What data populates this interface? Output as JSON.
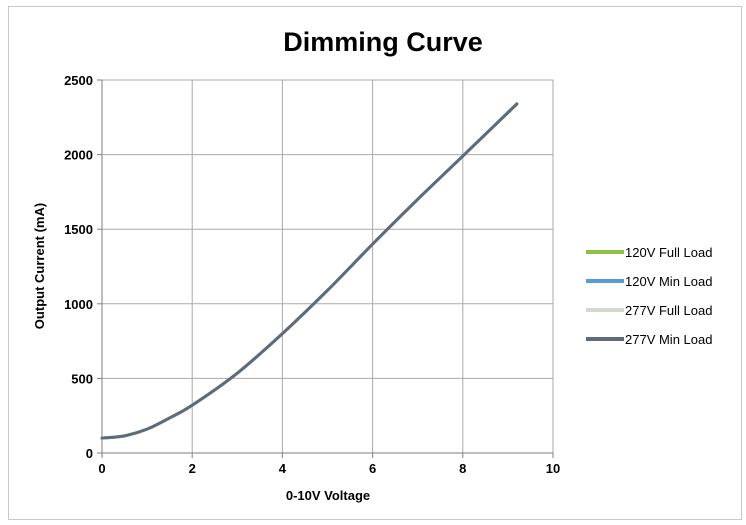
{
  "chart_data": {
    "type": "line",
    "title": "Dimming Curve",
    "xlabel": "0-10V Voltage",
    "ylabel": "Output Current (mA)",
    "xlim": [
      0,
      10
    ],
    "ylim": [
      0,
      2500
    ],
    "xticks": [
      0,
      2,
      4,
      6,
      8,
      10
    ],
    "yticks": [
      0,
      500,
      1000,
      1500,
      2000,
      2500
    ],
    "grid": true,
    "legend_position": "right",
    "series": [
      {
        "name": "120V Full Load",
        "color": "#8cc43f",
        "width": 3,
        "x": [
          0,
          0.5,
          1.0,
          1.5,
          2.0,
          3.0,
          4.0,
          5.0,
          6.0,
          7.0,
          8.0,
          9.2
        ],
        "y": [
          100,
          115,
          160,
          235,
          320,
          535,
          800,
          1090,
          1400,
          1700,
          1990,
          2340
        ]
      },
      {
        "name": "120V Min Load",
        "color": "#5b9bd5",
        "width": 3,
        "x": [
          0,
          0.5,
          1.0,
          1.5,
          2.0,
          3.0,
          4.0,
          5.0,
          6.0,
          7.0,
          8.0,
          9.2
        ],
        "y": [
          100,
          115,
          160,
          235,
          320,
          535,
          800,
          1090,
          1400,
          1700,
          1990,
          2340
        ]
      },
      {
        "name": "277V Full Load",
        "color": "#d3d8d0",
        "width": 3,
        "x": [
          0,
          0.5,
          1.0,
          1.5,
          2.0,
          3.0,
          4.0,
          5.0,
          6.0,
          7.0,
          8.0,
          9.2
        ],
        "y": [
          100,
          115,
          160,
          235,
          320,
          535,
          800,
          1090,
          1400,
          1700,
          1990,
          2340
        ]
      },
      {
        "name": "277V Min Load",
        "color": "#5f6b78",
        "width": 3,
        "x": [
          0,
          0.5,
          1.0,
          1.5,
          2.0,
          3.0,
          4.0,
          5.0,
          6.0,
          7.0,
          8.0,
          9.2
        ],
        "y": [
          100,
          115,
          160,
          235,
          320,
          535,
          800,
          1090,
          1400,
          1700,
          1990,
          2340
        ]
      }
    ]
  }
}
